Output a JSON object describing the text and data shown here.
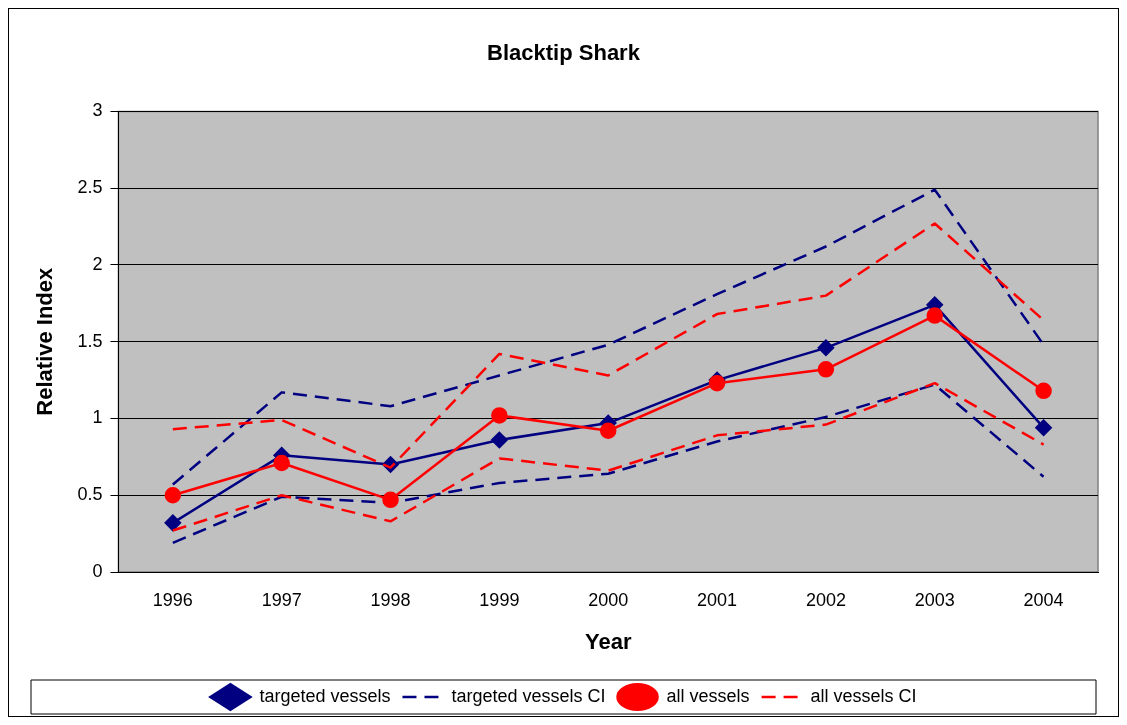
{
  "chart_data": {
    "type": "line",
    "title": "Blacktip Shark",
    "xlabel": "Year",
    "ylabel": "Relative Index",
    "categories": [
      "1996",
      "1997",
      "1998",
      "1999",
      "2000",
      "2001",
      "2002",
      "2003",
      "2004"
    ],
    "series": [
      {
        "name": "targeted vessels",
        "color": "#000080",
        "marker": "diamond",
        "line_style": "solid",
        "values": [
          0.32,
          0.76,
          0.7,
          0.86,
          0.97,
          1.25,
          1.46,
          1.74,
          0.94
        ]
      },
      {
        "name": "targeted vessels CI",
        "color": "#000080",
        "marker": "none",
        "line_style": "dashed",
        "values": [
          0.57,
          1.17,
          1.08,
          1.28,
          1.48,
          1.81,
          2.12,
          2.49,
          1.48
        ]
      },
      {
        "color": "#000080",
        "marker": "none",
        "line_style": "dashed",
        "values": [
          0.19,
          0.49,
          0.45,
          0.58,
          0.64,
          0.85,
          1.01,
          1.22,
          0.62
        ]
      },
      {
        "name": "all vessels",
        "color": "#ff0000",
        "marker": "circle",
        "line_style": "solid",
        "values": [
          0.5,
          0.71,
          0.47,
          1.02,
          0.92,
          1.23,
          1.32,
          1.67,
          1.18
        ]
      },
      {
        "name": "all vessels CI",
        "color": "#ff0000",
        "marker": "none",
        "line_style": "dashed",
        "values": [
          0.93,
          0.99,
          0.68,
          1.42,
          1.28,
          1.68,
          1.8,
          2.27,
          1.64
        ]
      },
      {
        "color": "#ff0000",
        "marker": "none",
        "line_style": "dashed",
        "values": [
          0.27,
          0.5,
          0.33,
          0.74,
          0.66,
          0.89,
          0.96,
          1.23,
          0.83
        ]
      }
    ],
    "ylim": [
      0,
      3
    ],
    "yticks": [
      0,
      0.5,
      1,
      1.5,
      2,
      2.5,
      3
    ],
    "grid": "y",
    "legend": "bottom"
  }
}
